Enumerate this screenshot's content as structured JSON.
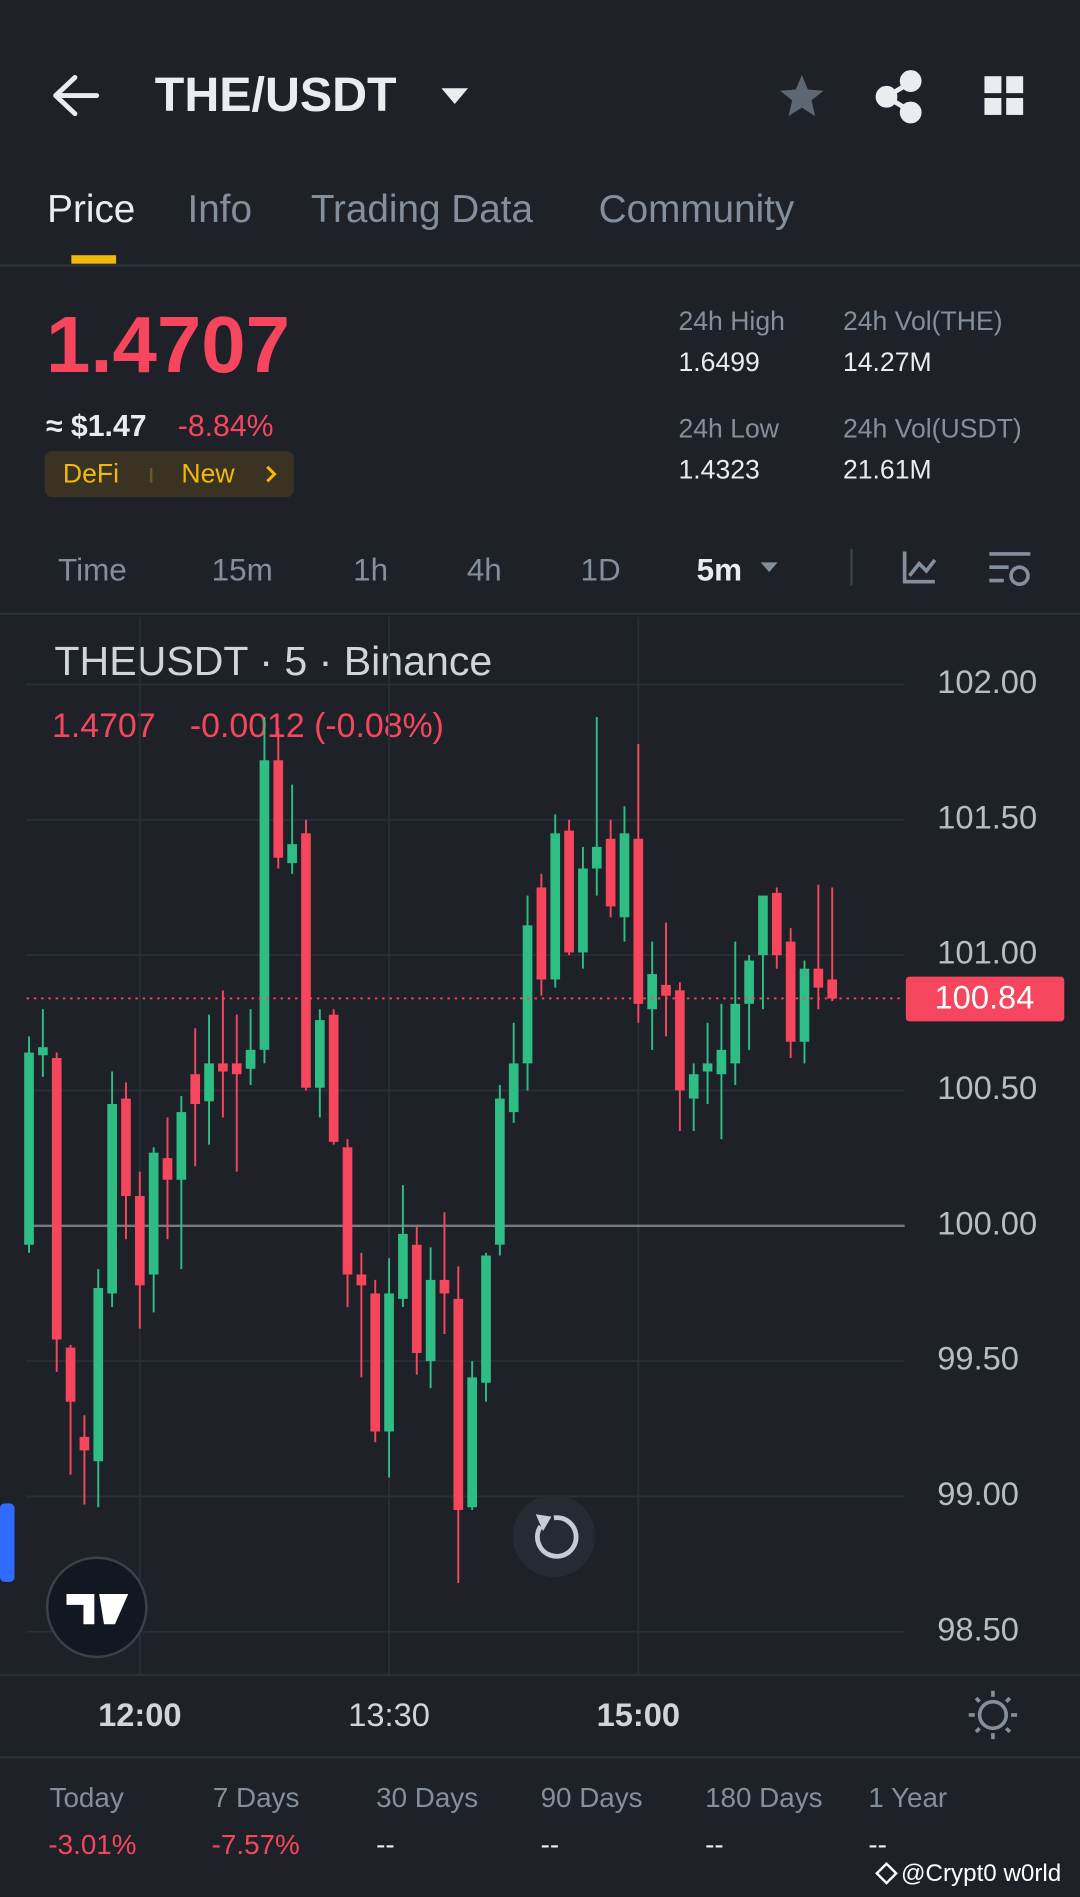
{
  "header": {
    "pair": "THE/USDT"
  },
  "tabs": [
    "Price",
    "Info",
    "Trading Data",
    "Community"
  ],
  "price": {
    "last": "1.4707",
    "approx": "≈ $1.47",
    "change": "-8.84%",
    "tags": [
      "DeFi",
      "New"
    ]
  },
  "stats": [
    {
      "label": "24h High",
      "value": "1.6499"
    },
    {
      "label": "24h Vol(THE)",
      "value": "14.27M"
    },
    {
      "label": "24h Low",
      "value": "1.4323"
    },
    {
      "label": "24h Vol(USDT)",
      "value": "21.61M"
    }
  ],
  "intervals": [
    "Time",
    "15m",
    "1h",
    "4h",
    "1D",
    "5m"
  ],
  "chart_data": {
    "type": "candlestick",
    "title": "THEUSDT · 5 · Binance",
    "last": "1.4707",
    "change": "-0.0012 (-0.08%)",
    "categories": [
      null,
      null,
      null,
      null,
      null,
      null,
      null,
      null,
      "12:00",
      null,
      null,
      null,
      null,
      null,
      null,
      null,
      null,
      null,
      null,
      null,
      null,
      null,
      null,
      null,
      null,
      null,
      "13:30",
      null,
      null,
      null,
      null,
      null,
      null,
      null,
      null,
      null,
      null,
      null,
      null,
      null,
      null,
      null,
      null,
      null,
      "15:00",
      null,
      null,
      null,
      null,
      null,
      null,
      null,
      null,
      null,
      null,
      null,
      null,
      null,
      null
    ],
    "open": [
      99.93,
      100.63,
      100.62,
      99.55,
      99.22,
      99.13,
      99.75,
      100.47,
      100.11,
      99.82,
      100.25,
      100.17,
      100.56,
      100.46,
      100.6,
      100.6,
      100.58,
      100.65,
      101.72,
      101.34,
      101.45,
      100.51,
      100.78,
      100.29,
      99.82,
      99.75,
      99.24,
      99.73,
      99.93,
      99.5,
      99.8,
      99.73,
      98.96,
      99.42,
      99.93,
      100.42,
      100.6,
      101.25,
      100.91,
      101.46,
      101.01,
      101.32,
      101.43,
      101.14,
      101.43,
      100.8,
      100.89,
      100.87,
      100.47,
      100.57,
      100.56,
      100.6,
      100.82,
      101.0,
      101.23,
      101.05,
      100.68,
      100.95,
      100.91
    ],
    "high": [
      100.7,
      100.8,
      100.64,
      99.56,
      99.3,
      99.84,
      100.57,
      100.53,
      100.2,
      100.29,
      100.4,
      100.48,
      100.73,
      100.78,
      100.87,
      100.78,
      100.8,
      101.88,
      101.84,
      101.63,
      101.5,
      100.8,
      100.8,
      100.32,
      99.9,
      99.8,
      99.88,
      100.15,
      100.0,
      99.92,
      100.05,
      99.85,
      99.5,
      99.9,
      100.52,
      100.75,
      101.22,
      101.3,
      101.52,
      101.5,
      101.4,
      101.88,
      101.5,
      101.55,
      101.78,
      101.05,
      101.12,
      100.9,
      100.6,
      100.75,
      100.82,
      101.05,
      101.0,
      101.22,
      101.25,
      101.1,
      100.98,
      101.26,
      101.25
    ],
    "low": [
      99.9,
      100.55,
      99.46,
      99.08,
      98.97,
      98.96,
      99.7,
      99.95,
      99.62,
      99.68,
      99.95,
      99.84,
      100.22,
      100.3,
      100.4,
      100.2,
      100.52,
      100.6,
      101.32,
      101.3,
      100.5,
      100.4,
      100.3,
      99.7,
      99.44,
      99.2,
      99.07,
      99.7,
      99.45,
      99.4,
      99.6,
      98.68,
      98.95,
      99.35,
      99.89,
      100.38,
      100.5,
      100.85,
      100.88,
      101.0,
      100.95,
      101.22,
      101.14,
      101.05,
      100.75,
      100.65,
      100.7,
      100.35,
      100.35,
      100.45,
      100.32,
      100.52,
      100.65,
      100.8,
      100.95,
      100.62,
      100.6,
      100.8,
      100.83
    ],
    "close": [
      100.64,
      100.66,
      99.58,
      99.35,
      99.17,
      99.77,
      100.45,
      100.11,
      99.78,
      100.27,
      100.17,
      100.42,
      100.45,
      100.6,
      100.57,
      100.56,
      100.65,
      101.72,
      101.36,
      101.41,
      100.51,
      100.76,
      100.31,
      99.82,
      99.78,
      99.24,
      99.75,
      99.97,
      99.53,
      99.8,
      99.75,
      98.95,
      99.44,
      99.89,
      100.47,
      100.6,
      101.11,
      100.91,
      101.45,
      101.01,
      101.32,
      101.4,
      101.18,
      101.45,
      100.82,
      100.93,
      100.85,
      100.5,
      100.56,
      100.6,
      100.65,
      100.82,
      100.98,
      101.22,
      101.0,
      100.68,
      100.95,
      100.88,
      100.84
    ],
    "up_color": "#2ebd85",
    "down_color": "#f6465d",
    "ylim": [
      98.34,
      102.25
    ],
    "yticks": [
      {
        "value": 98.5,
        "label": "98.50"
      },
      {
        "value": 99,
        "label": "99.00"
      },
      {
        "value": 99.5,
        "label": "99.50"
      },
      {
        "value": 100,
        "label": "100.00"
      },
      {
        "value": 100.5,
        "label": "100.50"
      },
      {
        "value": 101,
        "label": "101.00"
      },
      {
        "value": 101.5,
        "label": "101.50"
      },
      {
        "value": 102,
        "label": "102.00"
      }
    ],
    "baseline": 100,
    "last_price": 100.84,
    "grid": true
  },
  "performance": [
    {
      "label": "Today",
      "value": "-3.01%"
    },
    {
      "label": "7 Days",
      "value": "-7.57%"
    },
    {
      "label": "30 Days",
      "value": "--"
    },
    {
      "label": "90 Days",
      "value": "--"
    },
    {
      "label": "180 Days",
      "value": "--"
    },
    {
      "label": "1 Year",
      "value": "--"
    }
  ],
  "watermark": "@Crypt0 w0rld"
}
